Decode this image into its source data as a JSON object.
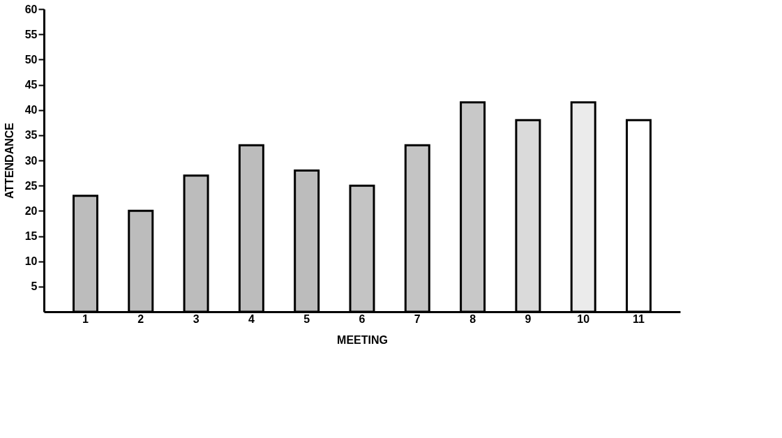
{
  "chart_data": {
    "type": "bar",
    "xlabel": "MEETING",
    "ylabel": "ATTENDANCE",
    "categories": [
      "1",
      "2",
      "3",
      "4",
      "5",
      "6",
      "7",
      "8",
      "9",
      "10",
      "11"
    ],
    "values": [
      23,
      20,
      27,
      33,
      28,
      25,
      33,
      41.5,
      38,
      41.5,
      38
    ],
    "colors": [
      "#bcbcbc",
      "#bcbcbc",
      "#bcbcbc",
      "#bcbcbc",
      "#bcbcbc",
      "#c4c4c4",
      "#c4c4c4",
      "#c8c8c8",
      "#dadada",
      "#ebebeb",
      "#ffffff"
    ],
    "ylim": [
      0,
      60
    ],
    "yticks": [
      5,
      10,
      15,
      20,
      25,
      30,
      35,
      40,
      45,
      50,
      55,
      60
    ],
    "grid": false
  }
}
